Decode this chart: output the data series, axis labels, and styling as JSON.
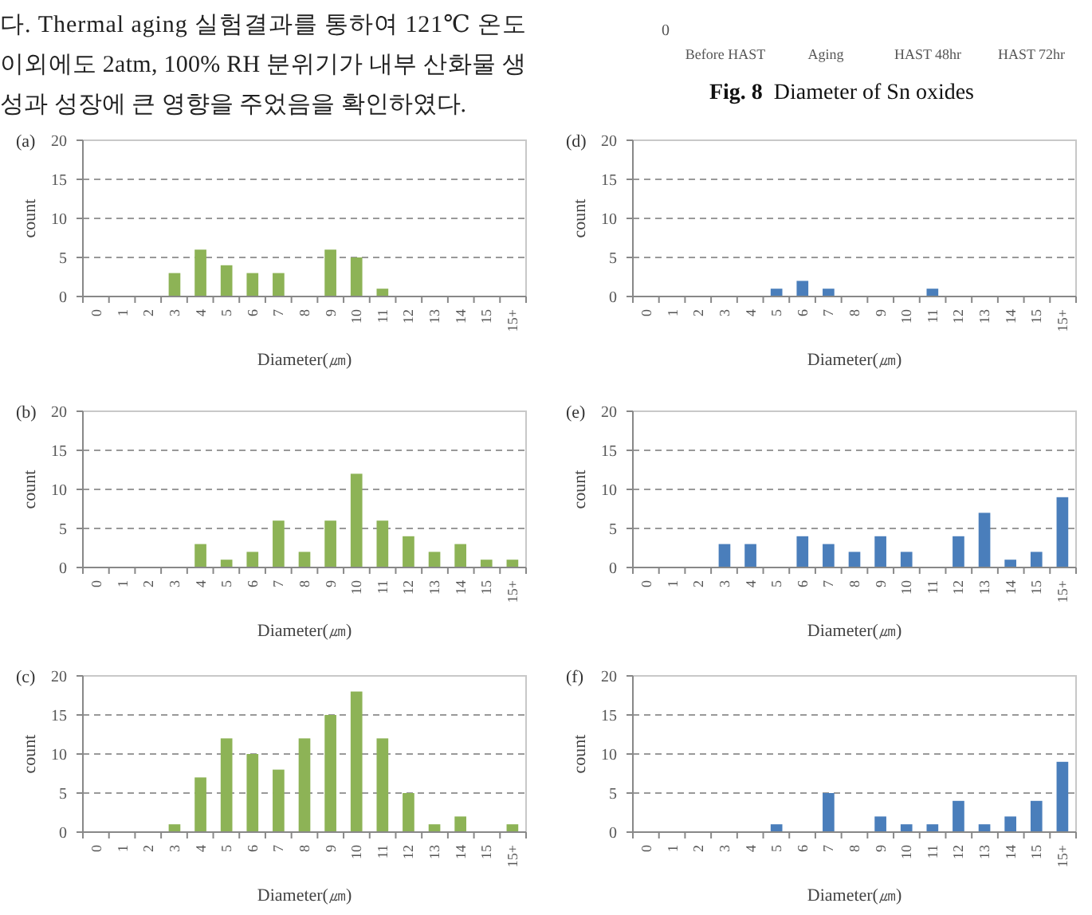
{
  "chart_data": [
    {
      "type": "other",
      "annotations": [
        "다. Thermal aging 실험결과를 통하여 121℃ 온도",
        "이외에도 2atm, 100% RH 분위기가 내부 산화물 생",
        "성과 성장에 큰 영향을 주었음을 확인하였다.",
        "0",
        "Before HAST",
        "Aging",
        "HAST 48hr",
        "HAST 72hr",
        "Fig. 8  Diameter of Sn oxides"
      ]
    },
    {
      "type": "bar",
      "title": "(a)",
      "xlabel": "Diameter(㎛)",
      "ylabel": "count",
      "categories": [
        "0",
        "1",
        "2",
        "3",
        "4",
        "5",
        "6",
        "7",
        "8",
        "9",
        "10",
        "11",
        "12",
        "13",
        "14",
        "15",
        "15+"
      ],
      "values": [
        0,
        0,
        0,
        3,
        6,
        4,
        3,
        3,
        0,
        6,
        5,
        1,
        0,
        0,
        0,
        0,
        0
      ],
      "color": "#8db356",
      "ylim": [
        0,
        20
      ],
      "yticks": [
        0,
        5,
        10,
        15,
        20
      ],
      "grid": "y"
    },
    {
      "type": "bar",
      "title": "(d)",
      "xlabel": "Diameter(㎛)",
      "ylabel": "count",
      "categories": [
        "0",
        "1",
        "2",
        "3",
        "4",
        "5",
        "6",
        "7",
        "8",
        "9",
        "10",
        "11",
        "12",
        "13",
        "14",
        "15",
        "15+"
      ],
      "values": [
        0,
        0,
        0,
        0,
        0,
        1,
        2,
        1,
        0,
        0,
        0,
        1,
        0,
        0,
        0,
        0,
        0
      ],
      "color": "#4a7ebb",
      "ylim": [
        0,
        20
      ],
      "yticks": [
        0,
        5,
        10,
        15,
        20
      ],
      "grid": "y"
    },
    {
      "type": "bar",
      "title": "(b)",
      "xlabel": "Diameter(㎛)",
      "ylabel": "count",
      "categories": [
        "0",
        "1",
        "2",
        "3",
        "4",
        "5",
        "6",
        "7",
        "8",
        "9",
        "10",
        "11",
        "12",
        "13",
        "14",
        "15",
        "15+"
      ],
      "values": [
        0,
        0,
        0,
        0,
        3,
        1,
        2,
        6,
        2,
        6,
        12,
        6,
        4,
        2,
        3,
        1,
        1
      ],
      "color": "#8db356",
      "ylim": [
        0,
        20
      ],
      "yticks": [
        0,
        5,
        10,
        15,
        20
      ],
      "grid": "y"
    },
    {
      "type": "bar",
      "title": "(e)",
      "xlabel": "Diameter(㎛)",
      "ylabel": "count",
      "categories": [
        "0",
        "1",
        "2",
        "3",
        "4",
        "5",
        "6",
        "7",
        "8",
        "9",
        "10",
        "11",
        "12",
        "13",
        "14",
        "15",
        "15+"
      ],
      "values": [
        0,
        0,
        0,
        3,
        3,
        0,
        4,
        3,
        2,
        4,
        2,
        0,
        4,
        7,
        1,
        2,
        9
      ],
      "color": "#4a7ebb",
      "ylim": [
        0,
        20
      ],
      "yticks": [
        0,
        5,
        10,
        15,
        20
      ],
      "grid": "y"
    },
    {
      "type": "bar",
      "title": "(c)",
      "xlabel": "Diameter(㎛)",
      "ylabel": "count",
      "categories": [
        "0",
        "1",
        "2",
        "3",
        "4",
        "5",
        "6",
        "7",
        "8",
        "9",
        "10",
        "11",
        "12",
        "13",
        "14",
        "15",
        "15+"
      ],
      "values": [
        0,
        0,
        0,
        1,
        7,
        12,
        10,
        8,
        12,
        15,
        18,
        12,
        5,
        1,
        2,
        0,
        1
      ],
      "color": "#8db356",
      "ylim": [
        0,
        20
      ],
      "yticks": [
        0,
        5,
        10,
        15,
        20
      ],
      "grid": "y"
    },
    {
      "type": "bar",
      "title": "(f)",
      "xlabel": "Diameter(㎛)",
      "ylabel": "count",
      "categories": [
        "0",
        "1",
        "2",
        "3",
        "4",
        "5",
        "6",
        "7",
        "8",
        "9",
        "10",
        "11",
        "12",
        "13",
        "14",
        "15",
        "15+"
      ],
      "values": [
        0,
        0,
        0,
        0,
        0,
        1,
        0,
        5,
        0,
        2,
        1,
        1,
        4,
        1,
        2,
        4,
        9
      ],
      "color": "#4a7ebb",
      "ylim": [
        0,
        20
      ],
      "yticks": [
        0,
        5,
        10,
        15,
        20
      ],
      "grid": "y"
    }
  ]
}
